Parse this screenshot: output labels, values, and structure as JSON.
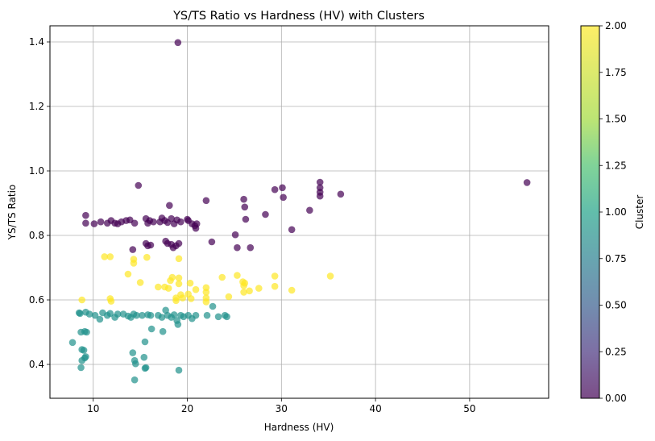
{
  "chart_data": {
    "type": "scatter",
    "title": "YS/TS Ratio vs Hardness (HV) with Clusters",
    "xlabel": "Hardness (HV)",
    "ylabel": "YS/TS Ratio",
    "xlim": [
      5.4,
      58.4
    ],
    "ylim": [
      0.295,
      1.45
    ],
    "xticks": [
      10,
      20,
      30,
      40,
      50
    ],
    "yticks": [
      0.4,
      0.6,
      0.8,
      1.0,
      1.2,
      1.4
    ],
    "xtick_labels": [
      "10",
      "20",
      "30",
      "40",
      "50"
    ],
    "ytick_labels": [
      "0.4",
      "0.6",
      "0.8",
      "1.0",
      "1.2",
      "1.4"
    ],
    "grid": true,
    "colorbar": {
      "label": "Cluster",
      "range": [
        0,
        2
      ],
      "ticks": [
        0.0,
        0.25,
        0.5,
        0.75,
        1.0,
        1.25,
        1.5,
        1.75,
        2.0
      ],
      "tick_labels": [
        "0.00",
        "0.25",
        "0.50",
        "0.75",
        "1.00",
        "1.25",
        "1.50",
        "1.75",
        "2.00"
      ],
      "colors": [
        "#440154",
        "#3b528b",
        "#21918c",
        "#5ec962",
        "#fde725"
      ]
    },
    "series": [
      {
        "cluster": 0,
        "color": "#440154",
        "points": [
          [
            19.0,
            1.398
          ],
          [
            9.2,
            0.862
          ],
          [
            9.2,
            0.838
          ],
          [
            10.1,
            0.836
          ],
          [
            10.8,
            0.842
          ],
          [
            11.5,
            0.838
          ],
          [
            11.9,
            0.846
          ],
          [
            12.3,
            0.838
          ],
          [
            12.6,
            0.836
          ],
          [
            13.0,
            0.842
          ],
          [
            13.5,
            0.846
          ],
          [
            13.9,
            0.848
          ],
          [
            14.4,
            0.838
          ],
          [
            14.8,
            0.955
          ],
          [
            15.6,
            0.852
          ],
          [
            15.8,
            0.838
          ],
          [
            16.0,
            0.846
          ],
          [
            16.4,
            0.842
          ],
          [
            17.1,
            0.842
          ],
          [
            17.3,
            0.854
          ],
          [
            17.6,
            0.846
          ],
          [
            17.9,
            0.84
          ],
          [
            18.1,
            0.893
          ],
          [
            18.3,
            0.852
          ],
          [
            18.6,
            0.836
          ],
          [
            18.9,
            0.848
          ],
          [
            19.3,
            0.842
          ],
          [
            20.0,
            0.85
          ],
          [
            20.1,
            0.846
          ],
          [
            20.5,
            0.836
          ],
          [
            20.8,
            0.83
          ],
          [
            21.0,
            0.836
          ],
          [
            20.9,
            0.822
          ],
          [
            14.2,
            0.756
          ],
          [
            15.6,
            0.775
          ],
          [
            15.8,
            0.768
          ],
          [
            16.1,
            0.77
          ],
          [
            17.7,
            0.782
          ],
          [
            17.9,
            0.775
          ],
          [
            18.3,
            0.772
          ],
          [
            18.5,
            0.762
          ],
          [
            18.8,
            0.768
          ],
          [
            19.1,
            0.775
          ],
          [
            22.0,
            0.908
          ],
          [
            22.6,
            0.78
          ],
          [
            25.1,
            0.802
          ],
          [
            25.3,
            0.762
          ],
          [
            26.0,
            0.912
          ],
          [
            26.1,
            0.888
          ],
          [
            26.2,
            0.85
          ],
          [
            26.7,
            0.762
          ],
          [
            28.3,
            0.865
          ],
          [
            29.3,
            0.942
          ],
          [
            30.1,
            0.948
          ],
          [
            30.2,
            0.918
          ],
          [
            31.1,
            0.818
          ],
          [
            33.0,
            0.878
          ],
          [
            34.1,
            0.965
          ],
          [
            34.1,
            0.948
          ],
          [
            34.1,
            0.934
          ],
          [
            34.1,
            0.922
          ],
          [
            36.3,
            0.928
          ],
          [
            56.1,
            0.964
          ]
        ]
      },
      {
        "cluster": 1,
        "color": "#21918c",
        "points": [
          [
            7.8,
            0.468
          ],
          [
            8.5,
            0.56
          ],
          [
            8.6,
            0.558
          ],
          [
            8.7,
            0.5
          ],
          [
            8.8,
            0.446
          ],
          [
            8.8,
            0.412
          ],
          [
            8.7,
            0.39
          ],
          [
            9.0,
            0.444
          ],
          [
            9.1,
            0.42
          ],
          [
            9.2,
            0.424
          ],
          [
            9.1,
            0.502
          ],
          [
            9.3,
            0.5
          ],
          [
            9.2,
            0.562
          ],
          [
            9.6,
            0.556
          ],
          [
            10.2,
            0.552
          ],
          [
            10.7,
            0.54
          ],
          [
            11.0,
            0.56
          ],
          [
            11.5,
            0.552
          ],
          [
            11.8,
            0.558
          ],
          [
            12.3,
            0.546
          ],
          [
            12.6,
            0.556
          ],
          [
            13.2,
            0.556
          ],
          [
            13.7,
            0.55
          ],
          [
            14.0,
            0.546
          ],
          [
            14.3,
            0.556
          ],
          [
            14.6,
            0.552
          ],
          [
            14.2,
            0.436
          ],
          [
            14.4,
            0.412
          ],
          [
            14.5,
            0.402
          ],
          [
            14.4,
            0.352
          ],
          [
            15.2,
            0.552
          ],
          [
            15.5,
            0.47
          ],
          [
            15.4,
            0.422
          ],
          [
            15.6,
            0.39
          ],
          [
            15.5,
            0.388
          ],
          [
            15.8,
            0.554
          ],
          [
            16.1,
            0.552
          ],
          [
            16.2,
            0.51
          ],
          [
            16.9,
            0.552
          ],
          [
            17.3,
            0.546
          ],
          [
            17.4,
            0.502
          ],
          [
            17.7,
            0.568
          ],
          [
            17.9,
            0.552
          ],
          [
            18.3,
            0.546
          ],
          [
            18.6,
            0.554
          ],
          [
            18.9,
            0.536
          ],
          [
            19.0,
            0.524
          ],
          [
            19.1,
            0.382
          ],
          [
            19.3,
            0.552
          ],
          [
            19.6,
            0.548
          ],
          [
            20.1,
            0.552
          ],
          [
            20.5,
            0.542
          ],
          [
            20.9,
            0.552
          ],
          [
            22.1,
            0.552
          ],
          [
            22.7,
            0.58
          ],
          [
            23.3,
            0.548
          ],
          [
            24.0,
            0.552
          ],
          [
            24.2,
            0.548
          ]
        ]
      },
      {
        "cluster": 2,
        "color": "#fde725",
        "points": [
          [
            8.8,
            0.6
          ],
          [
            11.2,
            0.734
          ],
          [
            11.8,
            0.734
          ],
          [
            11.8,
            0.604
          ],
          [
            11.9,
            0.596
          ],
          [
            13.7,
            0.68
          ],
          [
            14.3,
            0.726
          ],
          [
            14.3,
            0.714
          ],
          [
            15.0,
            0.654
          ],
          [
            15.7,
            0.732
          ],
          [
            16.9,
            0.64
          ],
          [
            17.6,
            0.64
          ],
          [
            18.0,
            0.636
          ],
          [
            18.2,
            0.66
          ],
          [
            18.4,
            0.67
          ],
          [
            18.8,
            0.606
          ],
          [
            18.8,
            0.598
          ],
          [
            19.1,
            0.728
          ],
          [
            19.1,
            0.668
          ],
          [
            19.1,
            0.65
          ],
          [
            19.3,
            0.616
          ],
          [
            19.5,
            0.606
          ],
          [
            20.1,
            0.618
          ],
          [
            20.3,
            0.652
          ],
          [
            20.4,
            0.604
          ],
          [
            20.9,
            0.632
          ],
          [
            22.0,
            0.638
          ],
          [
            22.0,
            0.624
          ],
          [
            22.0,
            0.606
          ],
          [
            22.0,
            0.594
          ],
          [
            23.7,
            0.67
          ],
          [
            24.4,
            0.61
          ],
          [
            25.3,
            0.676
          ],
          [
            25.9,
            0.656
          ],
          [
            26.0,
            0.644
          ],
          [
            26.1,
            0.652
          ],
          [
            26.0,
            0.624
          ],
          [
            26.6,
            0.628
          ],
          [
            27.6,
            0.636
          ],
          [
            29.3,
            0.674
          ],
          [
            29.3,
            0.642
          ],
          [
            31.1,
            0.63
          ],
          [
            35.2,
            0.674
          ]
        ]
      }
    ]
  }
}
